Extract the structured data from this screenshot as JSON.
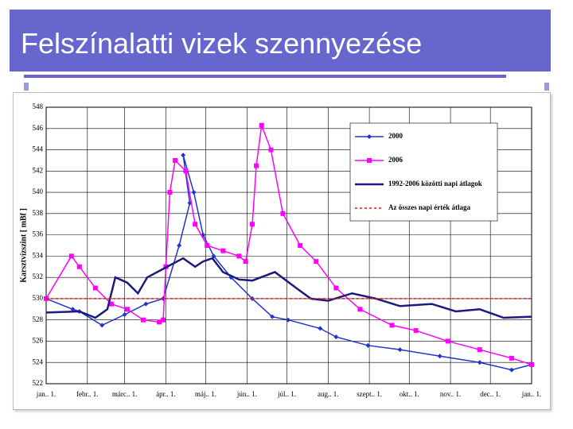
{
  "slide_title": "Felszínalatti vizek szennyezése",
  "chart_data": {
    "type": "line",
    "y_label": "Karsztvízszint [ mBf ]",
    "ylim": [
      522,
      548
    ],
    "yticks": [
      522,
      524,
      526,
      528,
      530,
      532,
      534,
      536,
      538,
      540,
      542,
      544,
      546,
      548
    ],
    "xlim": [
      0,
      365
    ],
    "xticks": [
      {
        "value": 0,
        "label": "jan.. 1."
      },
      {
        "value": 31,
        "label": "febr.. 1."
      },
      {
        "value": 59,
        "label": "márc.. 1."
      },
      {
        "value": 90,
        "label": "ápr.. 1."
      },
      {
        "value": 120,
        "label": "máj.. 1."
      },
      {
        "value": 151,
        "label": "jún.. 1."
      },
      {
        "value": 181,
        "label": "júl.. 1."
      },
      {
        "value": 212,
        "label": "aug.. 1."
      },
      {
        "value": 243,
        "label": "szept.. 1."
      },
      {
        "value": 273,
        "label": "okt.. 1."
      },
      {
        "value": 304,
        "label": "nov.. 1."
      },
      {
        "value": 334,
        "label": "dec.. 1."
      },
      {
        "value": 365,
        "label": "jan.. 1."
      }
    ],
    "grid": true,
    "series": [
      {
        "name": "2000",
        "color": "#2233cc",
        "marker": "diamond",
        "x": [
          0,
          20,
          25,
          42,
          59,
          75,
          88,
          100,
          108,
          103,
          111,
          118,
          126,
          139,
          155,
          170,
          182,
          206,
          218,
          242,
          266,
          296,
          326,
          350,
          365
        ],
        "values": [
          530,
          529,
          528.8,
          527.5,
          528.5,
          529.5,
          530,
          535,
          539,
          543.5,
          540,
          536,
          534,
          532,
          530,
          528.3,
          528,
          527.2,
          526.4,
          525.6,
          525.2,
          524.6,
          524,
          523.3,
          523.8
        ]
      },
      {
        "name": "2006",
        "color": "#ff00ff",
        "marker": "square",
        "x": [
          0,
          19,
          25,
          37,
          49,
          61,
          73,
          85,
          88,
          90,
          93,
          97,
          105,
          112,
          121,
          133,
          145,
          150,
          155,
          158,
          162,
          169,
          178,
          191,
          203,
          218,
          236,
          260,
          278,
          302,
          326,
          350,
          365
        ],
        "values": [
          530,
          534,
          533,
          531,
          529.5,
          529,
          528,
          527.8,
          528,
          533,
          540,
          543,
          542,
          537,
          535,
          534.5,
          534,
          533.5,
          537,
          542.5,
          546.3,
          544,
          538,
          535,
          533.5,
          531,
          529,
          527.5,
          527,
          526,
          525.2,
          524.4,
          523.8
        ]
      },
      {
        "name": "1992-2006 közötti napi átlagok",
        "color": "#1a1a80",
        "width": 2.5,
        "x": [
          0,
          25,
          37,
          46,
          52,
          61,
          69,
          76,
          91,
          103,
          112,
          118,
          125,
          133,
          145,
          155,
          172,
          188,
          199,
          212,
          230,
          248,
          266,
          290,
          308,
          326,
          344,
          365
        ],
        "values": [
          528.7,
          528.8,
          528.2,
          529,
          532,
          531.5,
          530.5,
          532,
          533,
          533.8,
          533,
          533.5,
          533.8,
          532.5,
          531.8,
          531.7,
          532.5,
          531,
          530,
          529.8,
          530.5,
          530,
          529.3,
          529.5,
          528.8,
          529,
          528.2,
          528.3
        ]
      },
      {
        "name": "Az összes napi érték átlaga",
        "color": "#cc2222",
        "dash": true,
        "x": [
          0,
          365
        ],
        "values": [
          530,
          530
        ]
      }
    ]
  }
}
